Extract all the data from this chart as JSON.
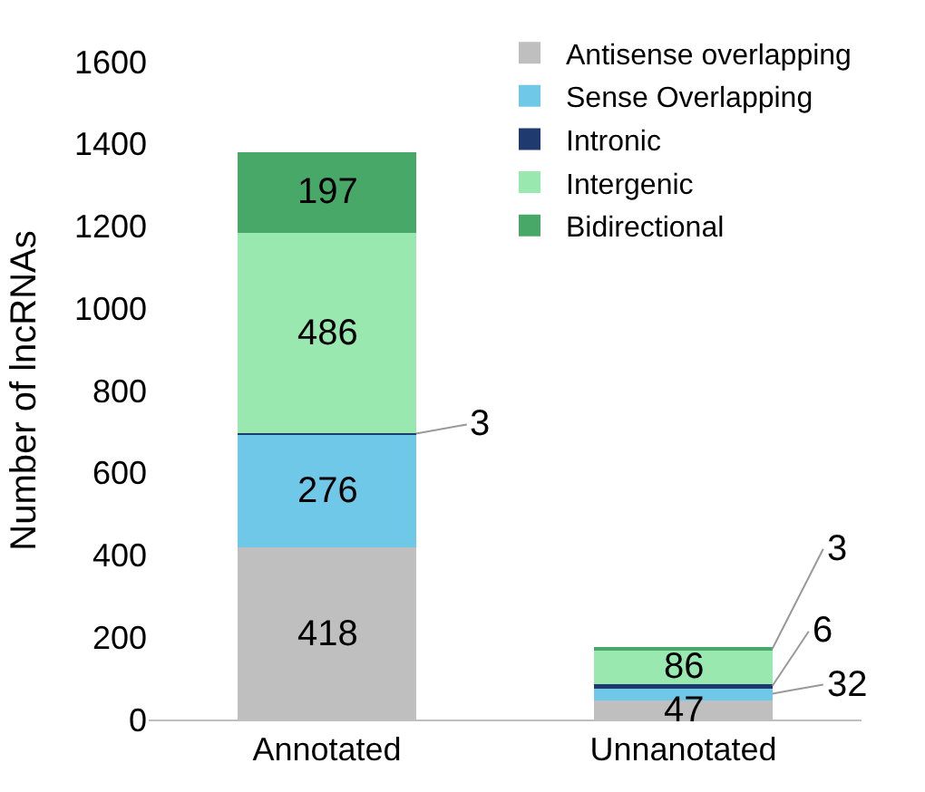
{
  "chart_data": {
    "type": "bar",
    "stacked": true,
    "ylabel": "Number of lncRNAs",
    "categories": [
      "Annotated",
      "Unnanotated"
    ],
    "series": [
      {
        "name": "Antisense overlapping",
        "color": "#bfbfbf",
        "values": [
          418,
          47
        ]
      },
      {
        "name": "Sense Overlapping",
        "color": "#70c8e8",
        "values": [
          276,
          32
        ]
      },
      {
        "name": "Intronic",
        "color": "#1f3a6e",
        "values": [
          3,
          6
        ]
      },
      {
        "name": "Intergenic",
        "color": "#98e8b0",
        "values": [
          486,
          86
        ]
      },
      {
        "name": "Bidirectional",
        "color": "#48a868",
        "values": [
          197,
          3
        ]
      }
    ],
    "ylim": [
      0,
      1600
    ],
    "yticks": [
      0,
      200,
      400,
      600,
      800,
      1000,
      1200,
      1400,
      1600
    ],
    "data_labels": true,
    "legend": "top right"
  }
}
